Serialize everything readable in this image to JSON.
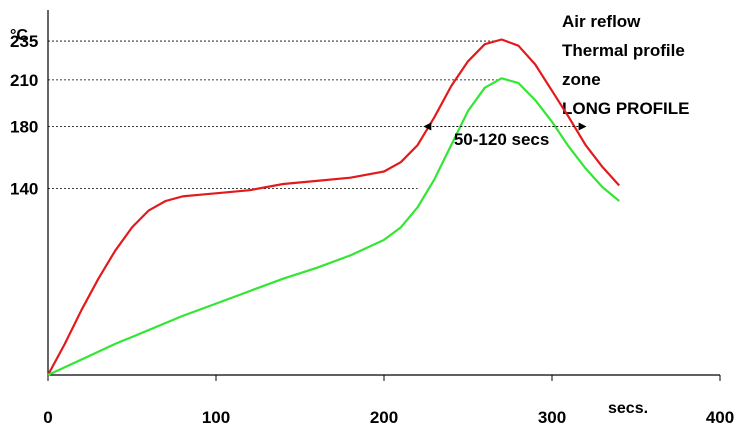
{
  "chart_data": {
    "type": "line",
    "title_lines": [
      "Air reflow",
      "Thermal profile",
      "zone",
      "LONG PROFILE"
    ],
    "y_unit": "°C",
    "x_unit": "secs.",
    "xlim": [
      0,
      400
    ],
    "ylim": [
      20,
      255
    ],
    "x_ticks": [
      0,
      100,
      200,
      300,
      400
    ],
    "x_tick_labels": [
      "0",
      "100",
      "200",
      "300",
      "400"
    ],
    "y_ticks": [
      140,
      180,
      210,
      235
    ],
    "y_tick_labels": [
      "140",
      "180",
      "210",
      "235"
    ],
    "grid": false,
    "reference_lines": [
      {
        "y": 235,
        "to_x": 268
      },
      {
        "y": 210,
        "to_x": 268
      },
      {
        "y": 180,
        "to_x": 224
      },
      {
        "y": 140,
        "to_x": 220
      }
    ],
    "series": [
      {
        "color": "#e31a1c",
        "x": [
          0,
          10,
          20,
          30,
          40,
          50,
          60,
          70,
          80,
          90,
          100,
          120,
          140,
          160,
          180,
          200,
          210,
          220,
          230,
          240,
          250,
          260,
          270,
          280,
          290,
          300,
          310,
          320,
          330,
          340
        ],
        "y": [
          20,
          40,
          62,
          82,
          100,
          115,
          126,
          132,
          135,
          136,
          137,
          139,
          143,
          145,
          147,
          151,
          157,
          168,
          186,
          206,
          222,
          233,
          236,
          232,
          220,
          203,
          186,
          168,
          154,
          142
        ]
      },
      {
        "color": "#33e633",
        "x": [
          0,
          20,
          40,
          60,
          80,
          100,
          120,
          140,
          160,
          180,
          200,
          210,
          220,
          230,
          240,
          250,
          260,
          270,
          280,
          290,
          300,
          310,
          320,
          330,
          340
        ],
        "y": [
          20,
          30,
          40,
          49,
          58,
          66,
          74,
          82,
          89,
          97,
          107,
          115,
          128,
          146,
          168,
          190,
          205,
          211,
          208,
          197,
          183,
          167,
          153,
          141,
          132
        ]
      }
    ],
    "annotations": [
      {
        "text": "50-120 secs",
        "x": 270,
        "y": 168
      },
      {
        "type": "double-arrow",
        "x1": 224,
        "x2": 320,
        "y": 180
      }
    ]
  }
}
